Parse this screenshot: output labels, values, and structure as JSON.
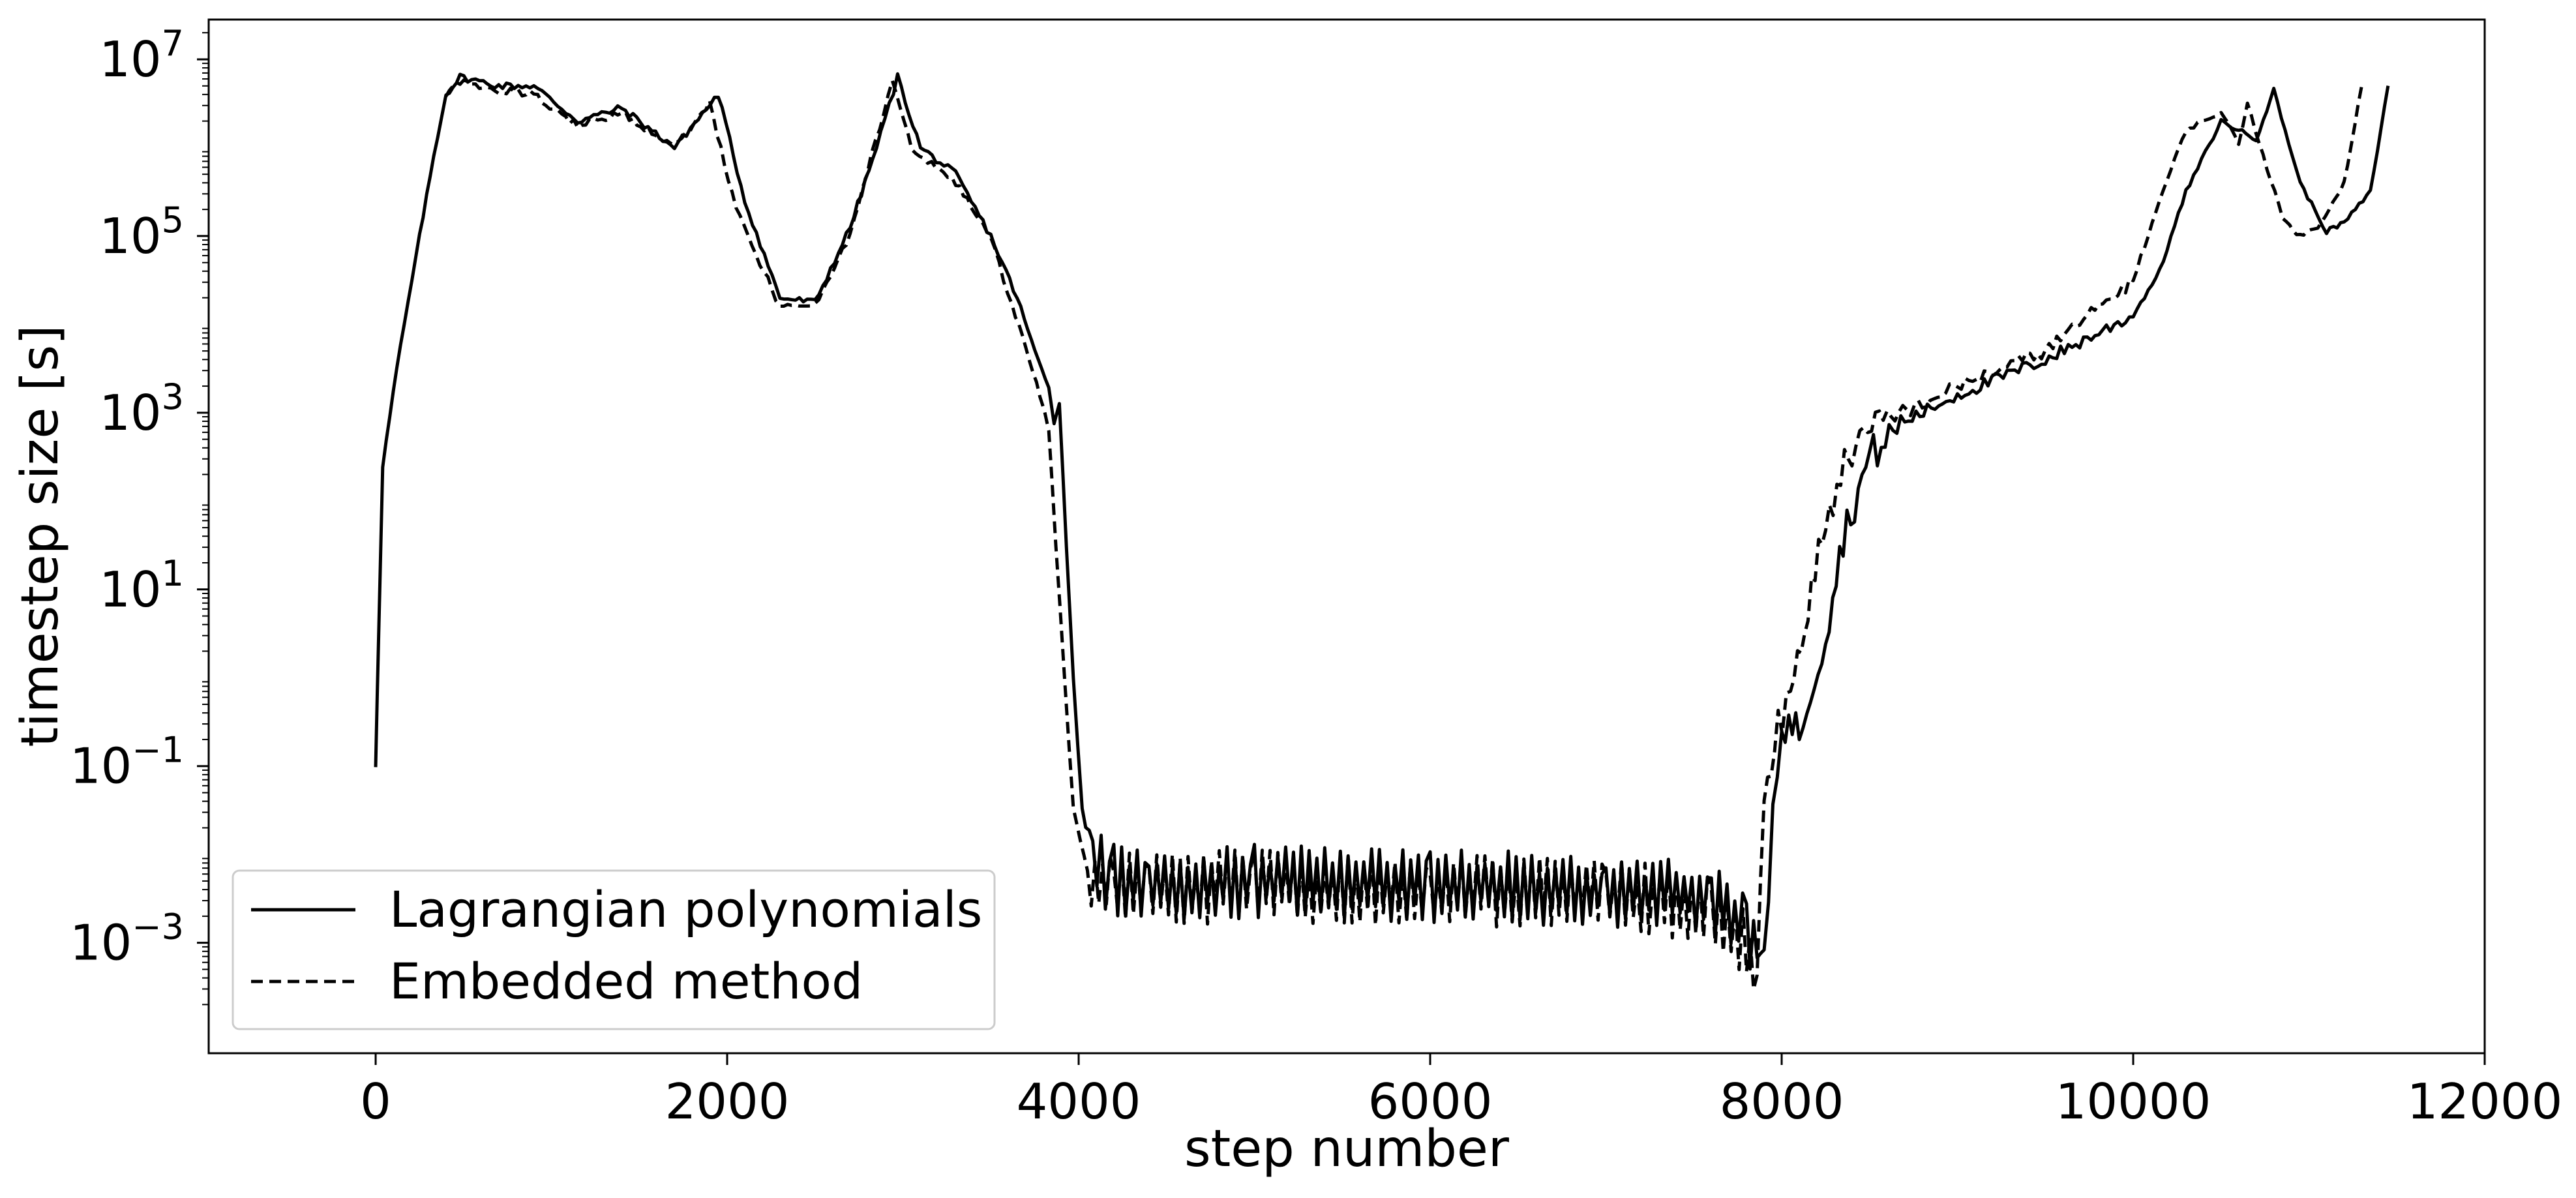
{
  "chart_data": {
    "type": "line",
    "title": "",
    "xlabel": "step number",
    "ylabel": "timestep size [s]",
    "xlim": [
      -950,
      12000
    ],
    "ylim_log10": [
      -4.25,
      7.45
    ],
    "yscale": "log",
    "grid": false,
    "legend_position": "lower-left",
    "x_ticks": [
      0,
      2000,
      4000,
      6000,
      8000,
      10000,
      12000
    ],
    "x_tick_labels": [
      "0",
      "2000",
      "4000",
      "6000",
      "8000",
      "10000",
      "12000"
    ],
    "y_ticks_exponent": [
      7,
      5,
      3,
      1,
      -1,
      -3
    ],
    "y_tick_base": "10",
    "y_tick_exponent_labels": [
      "7",
      "5",
      "3",
      "1",
      "−1",
      "−3"
    ],
    "series": [
      {
        "name": "Lagrangian polynomials",
        "style": "solid",
        "color": "#000000",
        "points": [
          [
            0,
            -1
          ],
          [
            10,
            -0.1
          ],
          [
            40,
            2.4
          ],
          [
            120,
            3.5
          ],
          [
            250,
            5.0
          ],
          [
            330,
            5.9
          ],
          [
            400,
            6.6
          ],
          [
            480,
            6.8
          ],
          [
            700,
            6.7
          ],
          [
            900,
            6.7
          ],
          [
            1150,
            6.3
          ],
          [
            1400,
            6.45
          ],
          [
            1700,
            6.0
          ],
          [
            1950,
            6.6
          ],
          [
            2100,
            5.4
          ],
          [
            2300,
            4.3
          ],
          [
            2500,
            4.25
          ],
          [
            2700,
            5.1
          ],
          [
            2850,
            6.0
          ],
          [
            2970,
            6.8
          ],
          [
            3100,
            6.0
          ],
          [
            3300,
            5.7
          ],
          [
            3500,
            5.0
          ],
          [
            3650,
            4.3
          ],
          [
            3750,
            3.7
          ],
          [
            3830,
            3.3
          ],
          [
            3860,
            2.9
          ],
          [
            3890,
            3.1
          ],
          [
            3930,
            1.5
          ],
          [
            3970,
            0
          ],
          [
            4020,
            -1.5
          ],
          [
            4080,
            -2.1
          ],
          [
            4200,
            -2.3
          ],
          [
            4400,
            -2.35
          ],
          [
            5000,
            -2.3
          ],
          [
            6000,
            -2.35
          ],
          [
            7000,
            -2.4
          ],
          [
            7600,
            -2.5
          ],
          [
            7800,
            -2.9
          ],
          [
            7900,
            -3.3
          ],
          [
            7950,
            -1.5
          ],
          [
            8000,
            -0.5
          ],
          [
            8100,
            -0.6
          ],
          [
            8250,
            0.5
          ],
          [
            8350,
            1.6
          ],
          [
            8500,
            2.5
          ],
          [
            8700,
            2.9
          ],
          [
            9000,
            3.2
          ],
          [
            9500,
            3.6
          ],
          [
            10000,
            4.1
          ],
          [
            10150,
            4.6
          ],
          [
            10300,
            5.5
          ],
          [
            10500,
            6.3
          ],
          [
            10600,
            6.2
          ],
          [
            10700,
            6.1
          ],
          [
            10800,
            6.65
          ],
          [
            10950,
            5.6
          ],
          [
            11100,
            5.05
          ],
          [
            11200,
            5.15
          ],
          [
            11350,
            5.5
          ],
          [
            11450,
            6.7
          ]
        ]
      },
      {
        "name": "Embedded method",
        "style": "dashed",
        "color": "#000000",
        "points": [
          [
            400,
            6.6
          ],
          [
            480,
            6.75
          ],
          [
            700,
            6.65
          ],
          [
            900,
            6.6
          ],
          [
            1150,
            6.25
          ],
          [
            1400,
            6.4
          ],
          [
            1700,
            6.0
          ],
          [
            1900,
            6.5
          ],
          [
            2050,
            5.3
          ],
          [
            2300,
            4.2
          ],
          [
            2500,
            4.2
          ],
          [
            2700,
            5.0
          ],
          [
            2820,
            5.9
          ],
          [
            2940,
            6.75
          ],
          [
            3050,
            6.0
          ],
          [
            3300,
            5.6
          ],
          [
            3500,
            5.0
          ],
          [
            3620,
            4.2
          ],
          [
            3720,
            3.6
          ],
          [
            3780,
            3.2
          ],
          [
            3830,
            2.8
          ],
          [
            3870,
            1.5
          ],
          [
            3920,
            0
          ],
          [
            3970,
            -1.5
          ],
          [
            4050,
            -2.2
          ],
          [
            4200,
            -2.4
          ],
          [
            4400,
            -2.4
          ],
          [
            5000,
            -2.35
          ],
          [
            6000,
            -2.4
          ],
          [
            7000,
            -2.45
          ],
          [
            7600,
            -2.6
          ],
          [
            7780,
            -3.0
          ],
          [
            7860,
            -3.35
          ],
          [
            7900,
            -1.3
          ],
          [
            7980,
            -0.5
          ],
          [
            8050,
            -0.3
          ],
          [
            8150,
            0.8
          ],
          [
            8250,
            1.8
          ],
          [
            8400,
            2.6
          ],
          [
            8600,
            2.9
          ],
          [
            9000,
            3.3
          ],
          [
            9500,
            3.7
          ],
          [
            10000,
            4.5
          ],
          [
            10150,
            5.4
          ],
          [
            10300,
            6.2
          ],
          [
            10500,
            6.4
          ],
          [
            10600,
            6.05
          ],
          [
            10650,
            6.5
          ],
          [
            10850,
            5.2
          ],
          [
            10950,
            5.0
          ],
          [
            11050,
            5.1
          ],
          [
            11200,
            5.6
          ],
          [
            11300,
            6.7
          ]
        ]
      }
    ]
  }
}
